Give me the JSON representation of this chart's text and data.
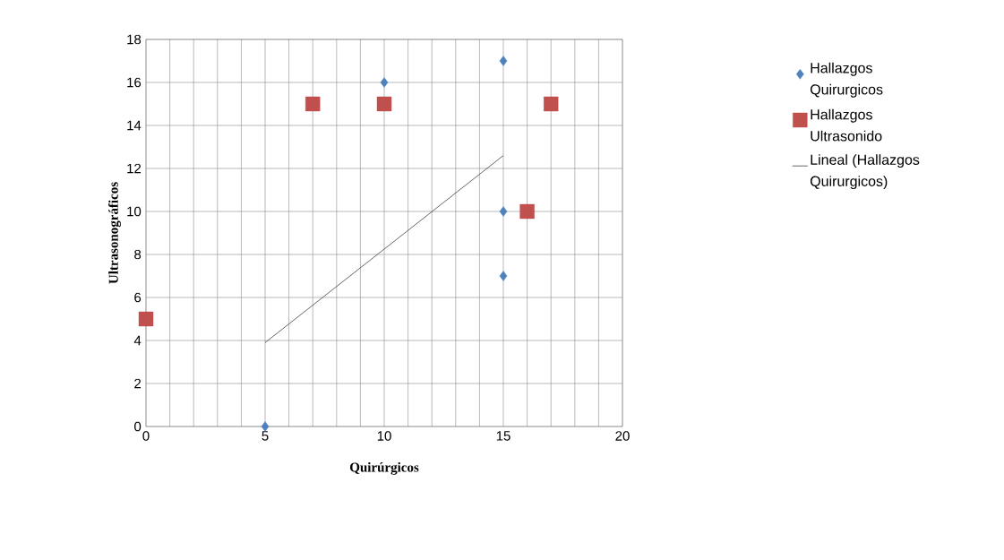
{
  "chart_data": {
    "type": "scatter",
    "xlabel": "Quirúrgicos",
    "ylabel": "Ultrasonográficos",
    "xlim": [
      0,
      20
    ],
    "ylim": [
      0,
      18
    ],
    "xticks": [
      0,
      5,
      10,
      15,
      20
    ],
    "yticks": [
      0,
      2,
      4,
      6,
      8,
      10,
      12,
      14,
      16,
      18
    ],
    "grid": true,
    "legend": "right",
    "series": [
      {
        "name": "Hallazgos Quirurgicos",
        "color": "#4f81bd",
        "marker": "diamond",
        "x": [
          5,
          10,
          15,
          15,
          15
        ],
        "values": [
          0,
          16,
          17,
          10,
          7
        ]
      },
      {
        "name": "Hallazgos Ultrasonido",
        "color": "#c0504d",
        "marker": "square",
        "x": [
          0,
          7,
          10,
          17,
          16
        ],
        "values": [
          5,
          15,
          15,
          15,
          10
        ]
      },
      {
        "name": "Lineal (Hallazgos Quirurgicos)",
        "type": "line",
        "color": "#404040",
        "marker": "none",
        "line_style": "solid",
        "x": [
          5,
          15
        ],
        "values": [
          3.9,
          12.6
        ]
      }
    ]
  }
}
